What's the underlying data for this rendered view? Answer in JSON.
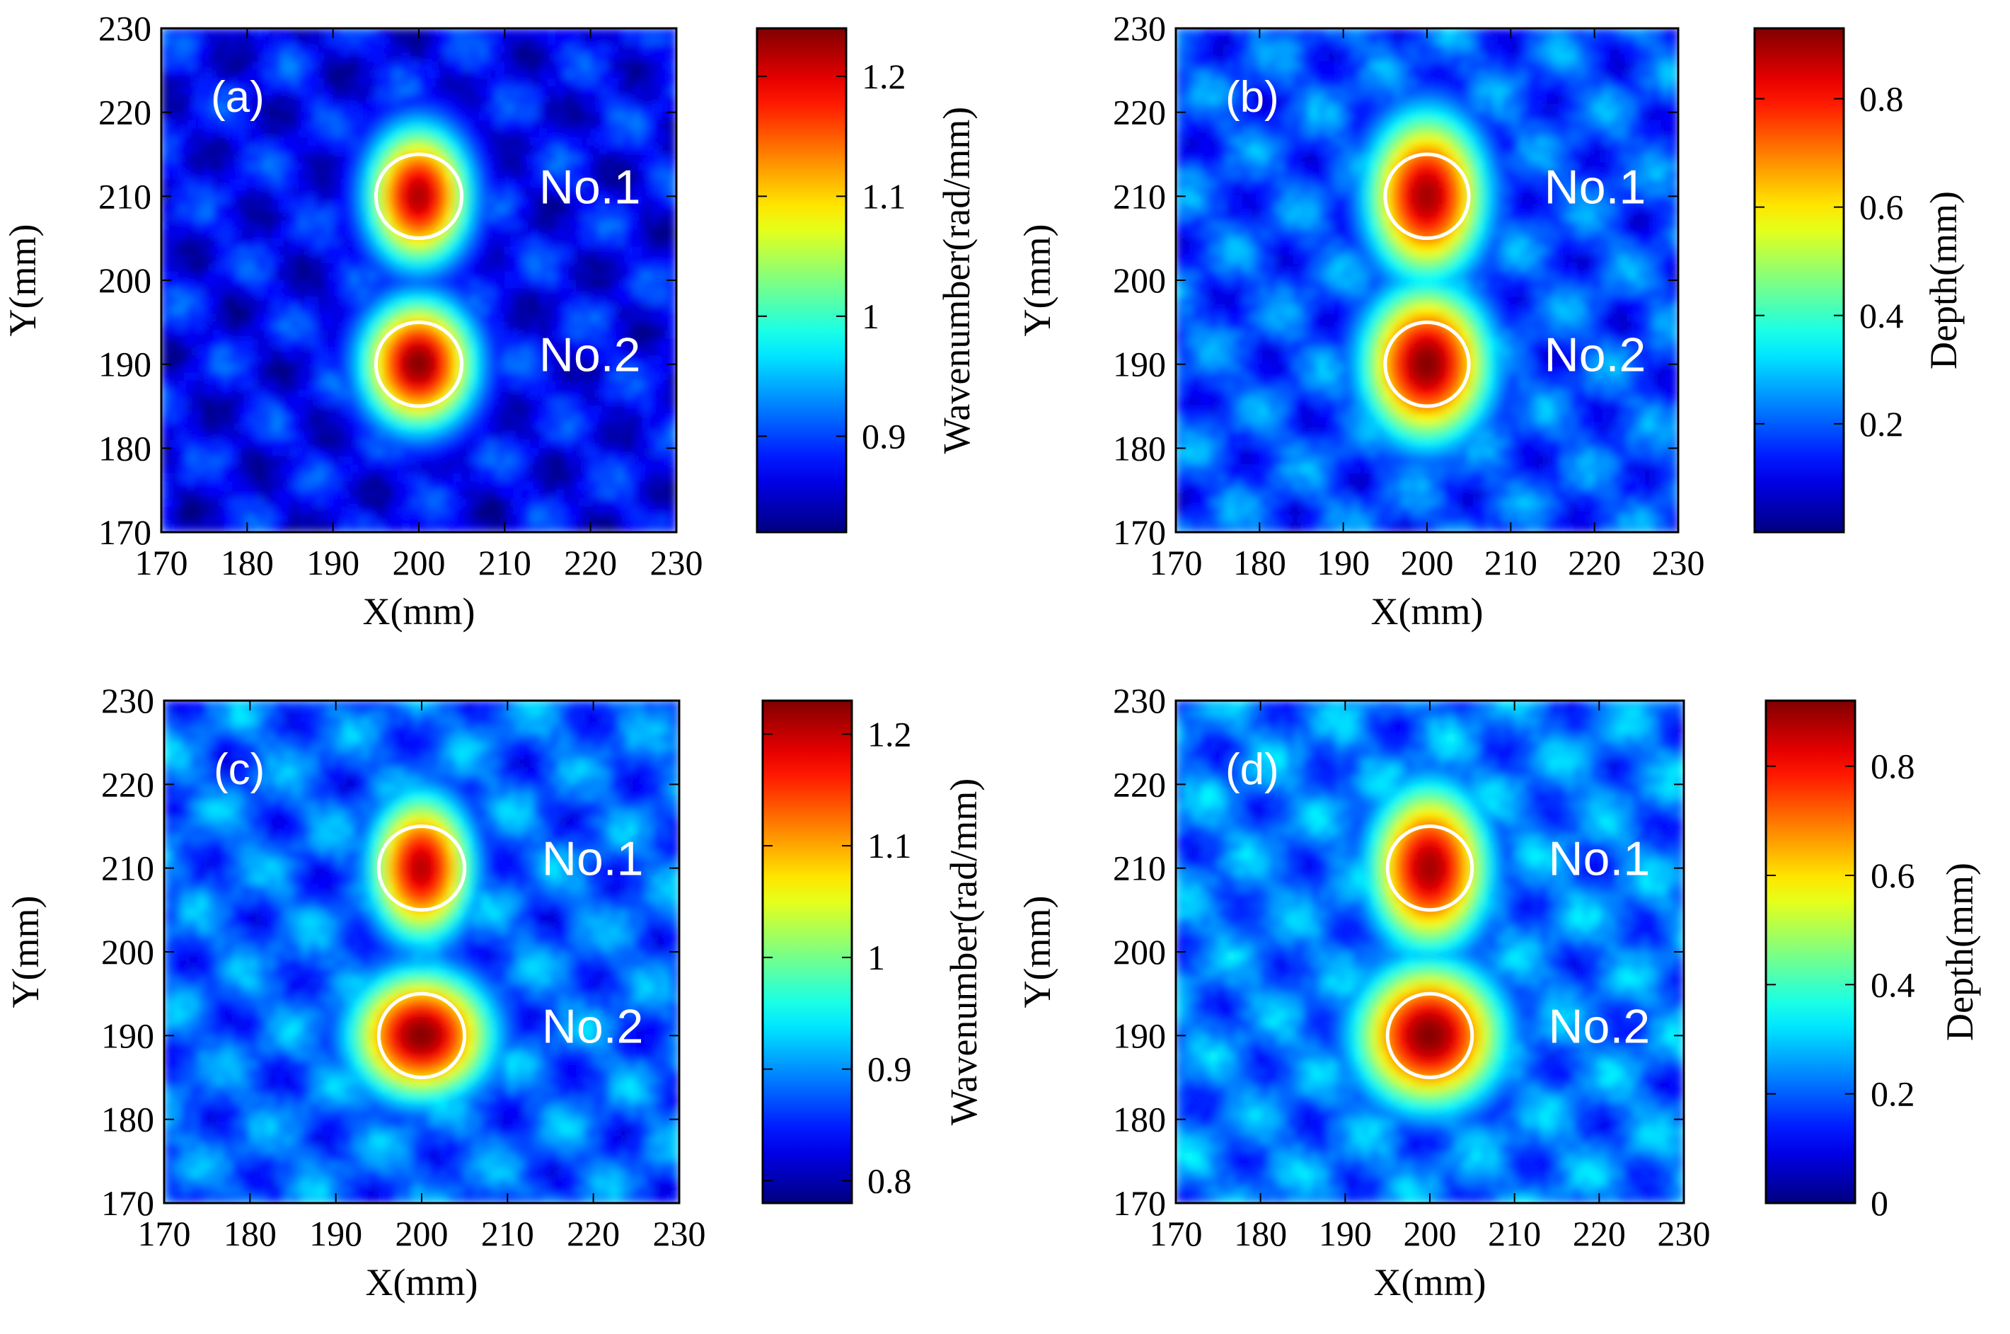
{
  "figure": {
    "layout": "2x2 grid"
  },
  "chart_data": [
    {
      "type": "heatmap",
      "panel_label": "(a)",
      "xlabel": "X(mm)",
      "ylabel": "Y(mm)",
      "xlim": [
        170,
        230
      ],
      "ylim": [
        170,
        230
      ],
      "xticks": [
        170,
        180,
        190,
        200,
        210,
        220,
        230
      ],
      "yticks": [
        170,
        180,
        190,
        200,
        210,
        220,
        230
      ],
      "colorbar": {
        "label": "Wavenumber(rad/mm)",
        "range": [
          0.82,
          1.24
        ],
        "ticks": [
          0.9,
          1,
          1.1,
          1.2
        ],
        "tick_labels": [
          "0.9",
          "1",
          "1.1",
          "1.2"
        ]
      },
      "background_level": 0.12,
      "hotspots": [
        {
          "name": "No.1",
          "x": 200,
          "y": 210,
          "peak": 0.96,
          "sx": 5.5,
          "sy": 7.5
        },
        {
          "name": "No.2",
          "x": 200,
          "y": 190,
          "peak": 1.0,
          "sx": 6.0,
          "sy": 7.0
        }
      ],
      "circles": [
        {
          "label": "No.1",
          "x": 200,
          "y": 210,
          "r": 5
        },
        {
          "label": "No.2",
          "x": 200,
          "y": 190,
          "r": 5
        }
      ]
    },
    {
      "type": "heatmap",
      "panel_label": "(b)",
      "xlabel": "X(mm)",
      "ylabel": "Y(mm)",
      "xlim": [
        170,
        230
      ],
      "ylim": [
        170,
        230
      ],
      "xticks": [
        170,
        180,
        190,
        200,
        210,
        220,
        230
      ],
      "yticks": [
        170,
        180,
        190,
        200,
        210,
        220,
        230
      ],
      "colorbar": {
        "label": "Depth(mm)",
        "range": [
          0,
          0.93
        ],
        "ticks": [
          0.2,
          0.4,
          0.6,
          0.8
        ],
        "tick_labels": [
          "0.2",
          "0.4",
          "0.6",
          "0.8"
        ]
      },
      "background_level": 0.2,
      "hotspots": [
        {
          "name": "No.1",
          "x": 200,
          "y": 210,
          "peak": 0.97,
          "sx": 6.5,
          "sy": 9.0
        },
        {
          "name": "No.2",
          "x": 200,
          "y": 190,
          "peak": 1.0,
          "sx": 7.0,
          "sy": 8.5
        }
      ],
      "circles": [
        {
          "label": "No.1",
          "x": 200,
          "y": 210,
          "r": 5
        },
        {
          "label": "No.2",
          "x": 200,
          "y": 190,
          "r": 5
        }
      ]
    },
    {
      "type": "heatmap",
      "panel_label": "(c)",
      "xlabel": "X(mm)",
      "ylabel": "Y(mm)",
      "xlim": [
        170,
        230
      ],
      "ylim": [
        170,
        230
      ],
      "xticks": [
        170,
        180,
        190,
        200,
        210,
        220,
        230
      ],
      "yticks": [
        170,
        180,
        190,
        200,
        210,
        220,
        230
      ],
      "colorbar": {
        "label": "Wavenumber(rad/mm)",
        "range": [
          0.78,
          1.23
        ],
        "ticks": [
          0.8,
          0.9,
          1,
          1.1,
          1.2
        ],
        "tick_labels": [
          "0.8",
          "0.9",
          "1",
          "1.1",
          "1.2"
        ]
      },
      "background_level": 0.22,
      "hotspots": [
        {
          "name": "No.1",
          "x": 200,
          "y": 210,
          "peak": 0.95,
          "sx": 5.5,
          "sy": 8.0
        },
        {
          "name": "No.2",
          "x": 200,
          "y": 190,
          "peak": 1.0,
          "sx": 7.5,
          "sy": 7.0
        }
      ],
      "circles": [
        {
          "label": "No.1",
          "x": 200,
          "y": 210,
          "r": 5
        },
        {
          "label": "No.2",
          "x": 200,
          "y": 190,
          "r": 5
        }
      ]
    },
    {
      "type": "heatmap",
      "panel_label": "(d)",
      "xlabel": "X(mm)",
      "ylabel": "Y(mm)",
      "xlim": [
        170,
        230
      ],
      "ylim": [
        170,
        230
      ],
      "xticks": [
        170,
        180,
        190,
        200,
        210,
        220,
        230
      ],
      "yticks": [
        170,
        180,
        190,
        200,
        210,
        220,
        230
      ],
      "colorbar": {
        "label": "Depth(mm)",
        "range": [
          0,
          0.92
        ],
        "ticks": [
          0,
          0.2,
          0.4,
          0.6,
          0.8
        ],
        "tick_labels": [
          "0",
          "0.2",
          "0.4",
          "0.6",
          "0.8"
        ]
      },
      "background_level": 0.24,
      "hotspots": [
        {
          "name": "No.1",
          "x": 200,
          "y": 210,
          "peak": 0.97,
          "sx": 6.5,
          "sy": 9.0
        },
        {
          "name": "No.2",
          "x": 200,
          "y": 190,
          "peak": 1.0,
          "sx": 8.0,
          "sy": 8.0
        }
      ],
      "circles": [
        {
          "label": "No.1",
          "x": 200,
          "y": 210,
          "r": 5
        },
        {
          "label": "No.2",
          "x": 200,
          "y": 190,
          "r": 5
        }
      ]
    }
  ]
}
